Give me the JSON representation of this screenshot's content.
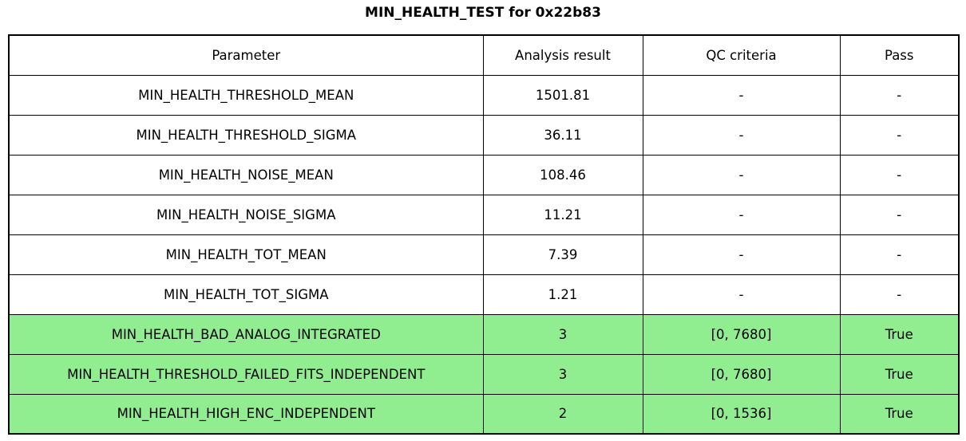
{
  "title": "MIN_HEALTH_TEST for 0x22b83",
  "colors": {
    "pass_row_bg": "#90ee90",
    "default_row_bg": "#ffffff",
    "border": "#000000",
    "text": "#000000"
  },
  "chart_data": {
    "type": "table",
    "title": "MIN_HEALTH_TEST for 0x22b83",
    "columns": [
      "Parameter",
      "Analysis result",
      "QC criteria",
      "Pass"
    ],
    "rows": [
      {
        "parameter": "MIN_HEALTH_THRESHOLD_MEAN",
        "analysis_result": "1501.81",
        "qc_criteria": "-",
        "pass": "-",
        "highlight": false
      },
      {
        "parameter": "MIN_HEALTH_THRESHOLD_SIGMA",
        "analysis_result": "36.11",
        "qc_criteria": "-",
        "pass": "-",
        "highlight": false
      },
      {
        "parameter": "MIN_HEALTH_NOISE_MEAN",
        "analysis_result": "108.46",
        "qc_criteria": "-",
        "pass": "-",
        "highlight": false
      },
      {
        "parameter": "MIN_HEALTH_NOISE_SIGMA",
        "analysis_result": "11.21",
        "qc_criteria": "-",
        "pass": "-",
        "highlight": false
      },
      {
        "parameter": "MIN_HEALTH_TOT_MEAN",
        "analysis_result": "7.39",
        "qc_criteria": "-",
        "pass": "-",
        "highlight": false
      },
      {
        "parameter": "MIN_HEALTH_TOT_SIGMA",
        "analysis_result": "1.21",
        "qc_criteria": "-",
        "pass": "-",
        "highlight": false
      },
      {
        "parameter": "MIN_HEALTH_BAD_ANALOG_INTEGRATED",
        "analysis_result": "3",
        "qc_criteria": "[0, 7680]",
        "pass": "True",
        "highlight": true
      },
      {
        "parameter": "MIN_HEALTH_THRESHOLD_FAILED_FITS_INDEPENDENT",
        "analysis_result": "3",
        "qc_criteria": "[0, 7680]",
        "pass": "True",
        "highlight": true
      },
      {
        "parameter": "MIN_HEALTH_HIGH_ENC_INDEPENDENT",
        "analysis_result": "2",
        "qc_criteria": "[0, 1536]",
        "pass": "True",
        "highlight": true
      }
    ]
  }
}
